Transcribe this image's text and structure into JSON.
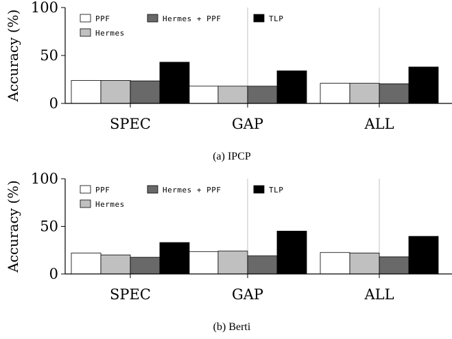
{
  "chart_data": [
    {
      "type": "bar",
      "caption": "(a) IPCP",
      "categories": [
        "SPEC",
        "GAP",
        "ALL"
      ],
      "ylabel": "Accuracy (%)",
      "ylim": [
        0,
        100
      ],
      "yticks": [
        "0",
        "50",
        "100"
      ],
      "grid": "vertical",
      "legend_position": "top-left",
      "series": [
        {
          "name": "PPF",
          "color": "#ffffff",
          "values": [
            24,
            18,
            21
          ]
        },
        {
          "name": "Hermes",
          "color": "#c0c0c0",
          "values": [
            24,
            18,
            21
          ]
        },
        {
          "name": "Hermes + PPF",
          "color": "#696969",
          "values": [
            23.5,
            18,
            20.5
          ]
        },
        {
          "name": "TLP",
          "color": "#000000",
          "values": [
            43,
            34,
            38
          ]
        }
      ]
    },
    {
      "type": "bar",
      "caption": "(b) Berti",
      "categories": [
        "SPEC",
        "GAP",
        "ALL"
      ],
      "ylabel": "Accuracy (%)",
      "ylim": [
        0,
        100
      ],
      "yticks": [
        "0",
        "50",
        "100"
      ],
      "grid": "vertical",
      "legend_position": "top-left",
      "series": [
        {
          "name": "PPF",
          "color": "#ffffff",
          "values": [
            22,
            23.5,
            22.5
          ]
        },
        {
          "name": "Hermes",
          "color": "#c0c0c0",
          "values": [
            20,
            24,
            22
          ]
        },
        {
          "name": "Hermes + PPF",
          "color": "#696969",
          "values": [
            17.5,
            19,
            18
          ]
        },
        {
          "name": "TLP",
          "color": "#000000",
          "values": [
            33,
            45,
            39.5
          ]
        }
      ]
    }
  ]
}
